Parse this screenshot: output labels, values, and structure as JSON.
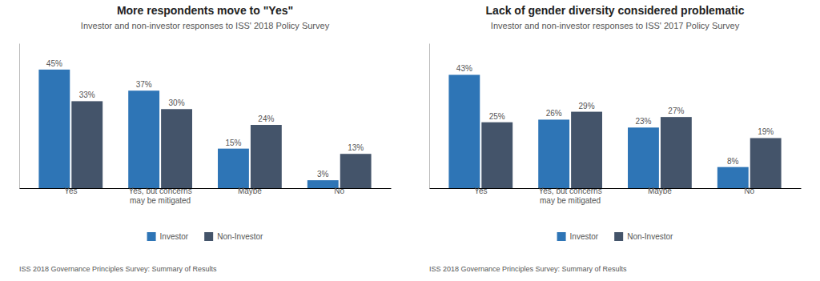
{
  "chart_data": [
    {
      "type": "bar",
      "title": "More respondents move to \"Yes\"",
      "subtitle": "Investor and non-investor responses to ISS' 2018 Policy Survey",
      "categories": [
        "Yes",
        "Yes, but concerns\nmay be mitigated",
        "Maybe",
        "No"
      ],
      "series": [
        {
          "name": "Investor",
          "color": "#2E75B6",
          "values": [
            45,
            37,
            15,
            3
          ],
          "value_labels": [
            "45%",
            "37%",
            "15%",
            "3%"
          ]
        },
        {
          "name": "Non-Investor",
          "color": "#44546A",
          "values": [
            33,
            30,
            24,
            13
          ],
          "value_labels": [
            "33%",
            "30%",
            "24%",
            "13%"
          ]
        }
      ],
      "ylim": [
        0,
        55
      ],
      "grid": false,
      "legend": "bottom",
      "data_labels": true,
      "tick_labels": "x",
      "annotations": [
        "ISS 2018 Governance Principles Survey: Summary of Results"
      ]
    },
    {
      "type": "bar",
      "title": "Lack of gender diversity considered problematic",
      "subtitle": "Investor and non-investor responses to ISS' 2017 Policy Survey",
      "categories": [
        "Yes",
        "Yes, but concerns\nmay be mitigated",
        "Maybe",
        "No"
      ],
      "series": [
        {
          "name": "Investor",
          "color": "#2E75B6",
          "values": [
            43,
            26,
            23,
            8
          ],
          "value_labels": [
            "43%",
            "26%",
            "23%",
            "8%"
          ]
        },
        {
          "name": "Non-Investor",
          "color": "#44546A",
          "values": [
            25,
            29,
            27,
            19
          ],
          "value_labels": [
            "25%",
            "29%",
            "27%",
            "19%"
          ]
        }
      ],
      "ylim": [
        0,
        55
      ],
      "grid": false,
      "legend": "bottom",
      "data_labels": true,
      "tick_labels": "x",
      "annotations": [
        "ISS 2018 Governance Principles Survey: Summary of Results"
      ]
    }
  ]
}
